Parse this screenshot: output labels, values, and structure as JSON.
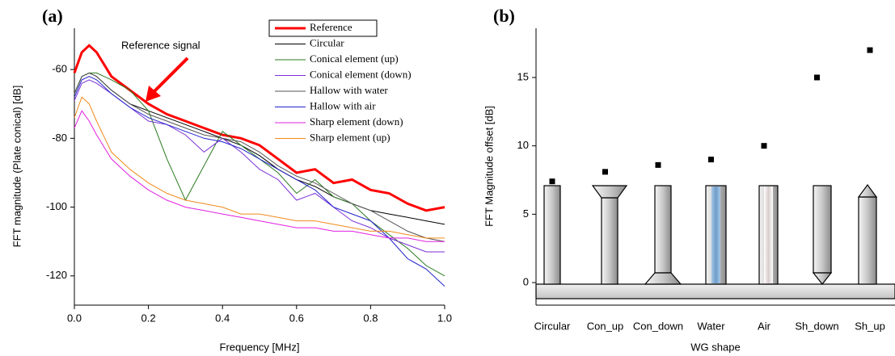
{
  "chart_data": [
    {
      "type": "line",
      "panel_label": "(a)",
      "x_label": "Frequency [MHz]",
      "y_label": "FFT magnitude (Plate conical) [dB]",
      "annotation": "Reference signal",
      "xlim": [
        0,
        1
      ],
      "ylim": [
        -128.5,
        -48
      ],
      "xticks": [
        {
          "value": 0,
          "label": "0.0"
        },
        0.2,
        0.4,
        0.6,
        0.8,
        {
          "value": 1,
          "label": "1.0"
        }
      ],
      "yticks": [
        -120,
        -100,
        -80,
        -60
      ],
      "x": [
        0,
        0.02,
        0.04,
        0.06,
        0.1,
        0.15,
        0.2,
        0.25,
        0.3,
        0.35,
        0.4,
        0.45,
        0.5,
        0.55,
        0.6,
        0.65,
        0.7,
        0.75,
        0.8,
        0.85,
        0.9,
        0.95,
        1.0
      ],
      "series": [
        {
          "name": "Reference",
          "color": "#ff0000",
          "values": [
            -61,
            -55,
            -53,
            -55,
            -62,
            -66,
            -70,
            -73,
            -75,
            -77,
            -79,
            -80,
            -82,
            -86,
            -90,
            -89,
            -93,
            -92,
            -95,
            -96,
            -99,
            -101,
            -100
          ]
        },
        {
          "name": "Circular",
          "color": "#000000",
          "values": [
            -67,
            -62,
            -61,
            -62,
            -66,
            -70,
            -72,
            -74,
            -76,
            -78,
            -80,
            -82,
            -85,
            -89,
            -92,
            -94,
            -97,
            -99,
            -101,
            -102,
            -103,
            -104,
            -105
          ]
        },
        {
          "name": "Conical element (up)",
          "color": "#2a7a1f",
          "values": [
            -67,
            -62,
            -61,
            -61,
            -63,
            -66,
            -72,
            -86,
            -98,
            -88,
            -78,
            -82,
            -86,
            -90,
            -96,
            -92,
            -97,
            -99,
            -104,
            -108,
            -112,
            -117,
            -120
          ]
        },
        {
          "name": "Conical element (down)",
          "color": "#7b2fd6",
          "values": [
            -69,
            -64,
            -63,
            -64,
            -67,
            -71,
            -75,
            -76,
            -79,
            -84,
            -80,
            -84,
            -89,
            -92,
            -98,
            -96,
            -100,
            -104,
            -106,
            -109,
            -111,
            -113,
            -113
          ]
        },
        {
          "name": "Hallow with water",
          "color": "#555555",
          "values": [
            -67,
            -62,
            -61,
            -62,
            -66,
            -70,
            -73,
            -75,
            -77,
            -79,
            -80,
            -81,
            -84,
            -88,
            -91,
            -93,
            -96,
            -99,
            -101,
            -104,
            -107,
            -109,
            -110
          ]
        },
        {
          "name": "Hallow with air",
          "color": "#2222cc",
          "values": [
            -68,
            -63,
            -62,
            -63,
            -67,
            -71,
            -74,
            -76,
            -78,
            -80,
            -81,
            -83,
            -86,
            -89,
            -92,
            -95,
            -100,
            -102,
            -104,
            -109,
            -115,
            -118,
            -123
          ]
        },
        {
          "name": "Sharp element (down)",
          "color": "#e020e0",
          "values": [
            -77,
            -72,
            -75,
            -79,
            -86,
            -91,
            -95,
            -98,
            -100,
            -101,
            -102,
            -103,
            -104,
            -105,
            -106,
            -106,
            -107,
            -107,
            -108,
            -109,
            -109,
            -110,
            -110
          ]
        },
        {
          "name": "Sharp element (up)",
          "color": "#f08a1c",
          "values": [
            -74,
            -68,
            -70,
            -75,
            -84,
            -89,
            -93,
            -96,
            -98,
            -99,
            -100,
            -102,
            -102,
            -103,
            -104,
            -104,
            -105,
            -106,
            -107,
            -107,
            -108,
            -109,
            -109
          ]
        }
      ]
    },
    {
      "type": "scatter",
      "panel_label": "(b)",
      "x_label": "WG shape",
      "y_label": "FFT Magnitude offset [dB]",
      "color": "#000000",
      "ylim": [
        -1.65,
        18.6
      ],
      "yticks": [
        0,
        5,
        10,
        15
      ],
      "categories": [
        "Circular",
        "Con_up",
        "Con_down",
        "Water",
        "Air",
        "Sh_down",
        "Sh_up"
      ],
      "values": [
        7.4,
        8.1,
        8.6,
        9.0,
        10.0,
        15.0,
        17.0
      ]
    }
  ]
}
